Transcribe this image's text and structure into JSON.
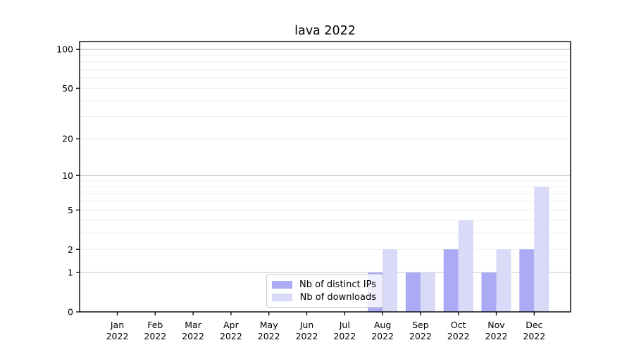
{
  "chart_data": {
    "type": "bar",
    "title": "lava 2022",
    "categories": [
      "Jan",
      "Feb",
      "Mar",
      "Apr",
      "May",
      "Jun",
      "Jul",
      "Aug",
      "Sep",
      "Oct",
      "Nov",
      "Dec"
    ],
    "year": "2022",
    "series": [
      {
        "name": "Nb of distinct IPs",
        "color": "#aaaaf5",
        "values": [
          0,
          0,
          0,
          0,
          0,
          0,
          0,
          1,
          1,
          2,
          1,
          2
        ]
      },
      {
        "name": "Nb of downloads",
        "color": "#d9d9f8",
        "values": [
          0,
          0,
          0,
          0,
          0,
          0,
          0,
          2,
          1,
          4,
          2,
          8
        ]
      }
    ],
    "y_ticks": [
      0,
      1,
      2,
      5,
      10,
      20,
      50,
      100
    ],
    "ylim": [
      0,
      115
    ],
    "yscale": "log10(1+v)",
    "grid": "on",
    "legend_position": "lower center inside plot",
    "colors": {
      "major_grid": "#c6c6c6",
      "minor_grid": "#ededed",
      "axis": "#000000",
      "text": "#000000"
    }
  }
}
